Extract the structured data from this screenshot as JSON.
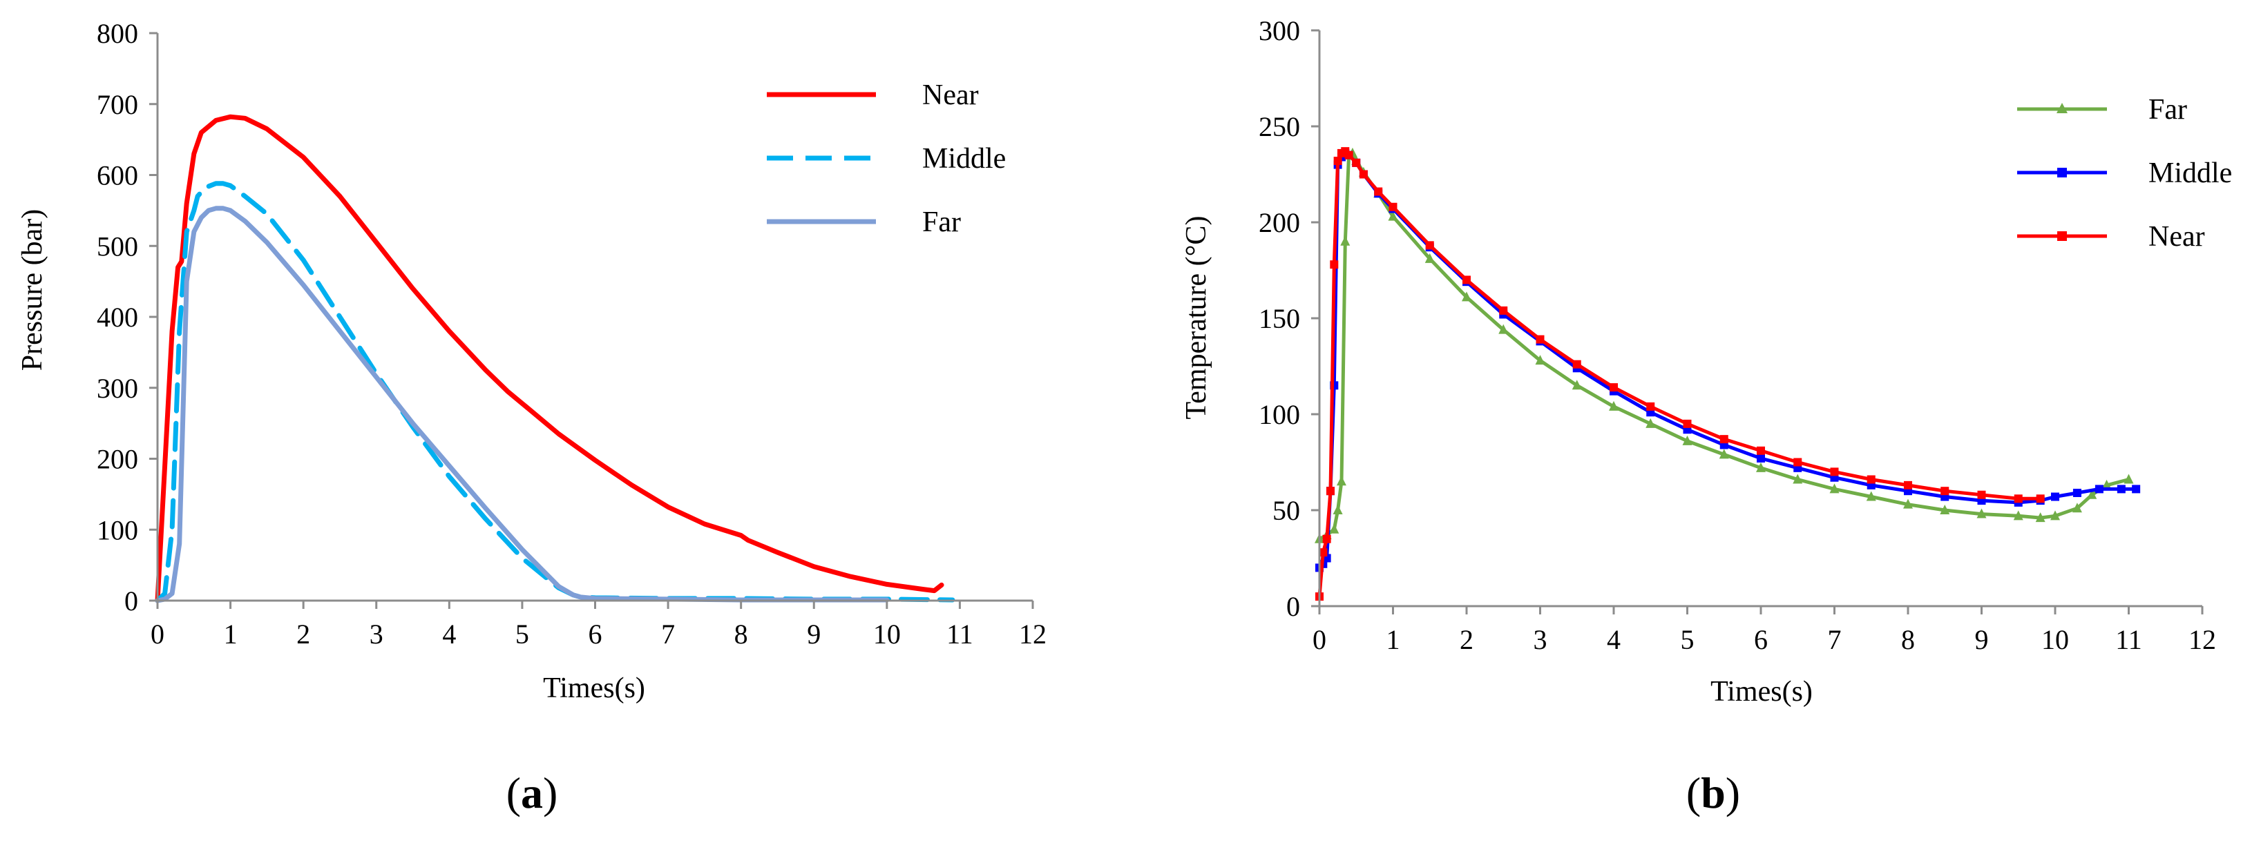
{
  "chart_data": [
    {
      "type": "line",
      "panel_label": "(a)",
      "panel_letter": "a",
      "title": "",
      "xlabel": "Times(s)",
      "ylabel": "Pressure (bar)",
      "xlim": [
        0,
        12
      ],
      "ylim": [
        0,
        800
      ],
      "xticks": [
        0,
        1,
        2,
        3,
        4,
        5,
        6,
        7,
        8,
        9,
        10,
        11,
        12
      ],
      "yticks": [
        0,
        100,
        200,
        300,
        400,
        500,
        600,
        700,
        800
      ],
      "grid": false,
      "legend_position": "top-right",
      "series": [
        {
          "name": "Near",
          "color": "#ff0000",
          "style": "solid",
          "x": [
            0,
            0.1,
            0.2,
            0.28,
            0.33,
            0.4,
            0.5,
            0.6,
            0.8,
            1.0,
            1.2,
            1.5,
            2.0,
            2.5,
            3.0,
            3.5,
            4.0,
            4.5,
            4.8,
            5.0,
            5.5,
            6.0,
            6.5,
            7.0,
            7.5,
            8.0,
            8.1,
            8.5,
            9.0,
            9.5,
            10.0,
            10.5,
            10.65,
            10.75
          ],
          "y": [
            0,
            190,
            380,
            470,
            478,
            560,
            630,
            660,
            677,
            682,
            680,
            665,
            625,
            570,
            505,
            440,
            380,
            325,
            295,
            278,
            235,
            198,
            163,
            132,
            108,
            92,
            85,
            68,
            48,
            34,
            23,
            16,
            14,
            22
          ]
        },
        {
          "name": "Middle",
          "color": "#00b0f0",
          "style": "dashed",
          "x": [
            0,
            0.1,
            0.2,
            0.3,
            0.4,
            0.5,
            0.55,
            0.65,
            0.8,
            0.9,
            1.0,
            1.2,
            1.5,
            2.0,
            2.5,
            3.0,
            3.5,
            4.0,
            4.5,
            5.0,
            5.5,
            5.7,
            5.8,
            6.0,
            7.0,
            8.0,
            9.0,
            10.0,
            10.9
          ],
          "y": [
            0,
            10,
            100,
            380,
            520,
            550,
            570,
            582,
            588,
            588,
            585,
            570,
            545,
            480,
            400,
            320,
            245,
            175,
            115,
            60,
            18,
            8,
            5,
            4,
            3,
            3,
            2,
            2,
            1
          ]
        },
        {
          "name": "Far",
          "color": "#7f9ed6",
          "style": "solid",
          "x": [
            0,
            0.1,
            0.2,
            0.3,
            0.4,
            0.5,
            0.6,
            0.7,
            0.8,
            0.9,
            1.0,
            1.2,
            1.5,
            2.0,
            2.5,
            3.0,
            3.5,
            4.0,
            4.5,
            5.0,
            5.5,
            5.7,
            5.8,
            6.0,
            7.0,
            8.0,
            9.0,
            10.0
          ],
          "y": [
            0,
            2,
            10,
            80,
            450,
            520,
            540,
            550,
            553,
            553,
            550,
            535,
            505,
            445,
            380,
            315,
            250,
            190,
            130,
            72,
            20,
            8,
            5,
            3,
            2,
            1,
            1,
            1
          ]
        }
      ]
    },
    {
      "type": "line",
      "panel_label": "(b)",
      "panel_letter": "b",
      "title": "",
      "xlabel": "Times(s)",
      "ylabel": "Temperature (°C)",
      "xlim": [
        0,
        12
      ],
      "ylim": [
        0,
        300
      ],
      "xticks": [
        0,
        1,
        2,
        3,
        4,
        5,
        6,
        7,
        8,
        9,
        10,
        11,
        12
      ],
      "yticks": [
        0,
        50,
        100,
        150,
        200,
        250,
        300
      ],
      "grid": false,
      "legend_position": "top-right",
      "series": [
        {
          "name": "Far",
          "color": "#70ad47",
          "marker": "triangle",
          "x": [
            0,
            0.1,
            0.2,
            0.25,
            0.3,
            0.35,
            0.4,
            0.45,
            0.5,
            0.6,
            0.8,
            1.0,
            1.5,
            2.0,
            2.5,
            3.0,
            3.5,
            4.0,
            4.5,
            5.0,
            5.5,
            6.0,
            6.5,
            7.0,
            7.5,
            8.0,
            8.5,
            9.0,
            9.5,
            9.8,
            10.0,
            10.3,
            10.5,
            10.7,
            11.0
          ],
          "y": [
            35,
            37,
            40,
            50,
            65,
            190,
            235,
            236,
            232,
            226,
            215,
            203,
            181,
            161,
            144,
            128,
            115,
            104,
            95,
            86,
            79,
            72,
            66,
            61,
            57,
            53,
            50,
            48,
            47,
            46,
            47,
            51,
            58,
            63,
            66
          ]
        },
        {
          "name": "Middle",
          "color": "#0000ff",
          "marker": "square",
          "x": [
            0,
            0.05,
            0.1,
            0.15,
            0.2,
            0.25,
            0.3,
            0.35,
            0.4,
            0.5,
            0.6,
            0.8,
            1.0,
            1.5,
            2.0,
            2.5,
            3.0,
            3.5,
            4.0,
            4.5,
            5.0,
            5.5,
            6.0,
            6.5,
            7.0,
            7.5,
            8.0,
            8.5,
            9.0,
            9.5,
            9.8,
            10.0,
            10.3,
            10.6,
            10.9,
            11.1
          ],
          "y": [
            20,
            22,
            25,
            60,
            115,
            230,
            234,
            236,
            235,
            231,
            225,
            215,
            207,
            187,
            169,
            152,
            138,
            124,
            112,
            101,
            92,
            84,
            77,
            72,
            67,
            63,
            60,
            57,
            55,
            54,
            55,
            57,
            59,
            61,
            61,
            61
          ]
        },
        {
          "name": "Near",
          "color": "#ff0000",
          "marker": "square",
          "x": [
            0,
            0.05,
            0.1,
            0.15,
            0.2,
            0.25,
            0.3,
            0.35,
            0.4,
            0.5,
            0.6,
            0.8,
            1.0,
            1.5,
            2.0,
            2.5,
            3.0,
            3.5,
            4.0,
            4.5,
            5.0,
            5.5,
            6.0,
            6.5,
            7.0,
            7.5,
            8.0,
            8.5,
            9.0,
            9.5,
            9.8
          ],
          "y": [
            5,
            28,
            35,
            60,
            178,
            232,
            236,
            237,
            235,
            231,
            225,
            216,
            208,
            188,
            170,
            154,
            139,
            126,
            114,
            104,
            95,
            87,
            81,
            75,
            70,
            66,
            63,
            60,
            58,
            56,
            56
          ]
        }
      ]
    }
  ]
}
